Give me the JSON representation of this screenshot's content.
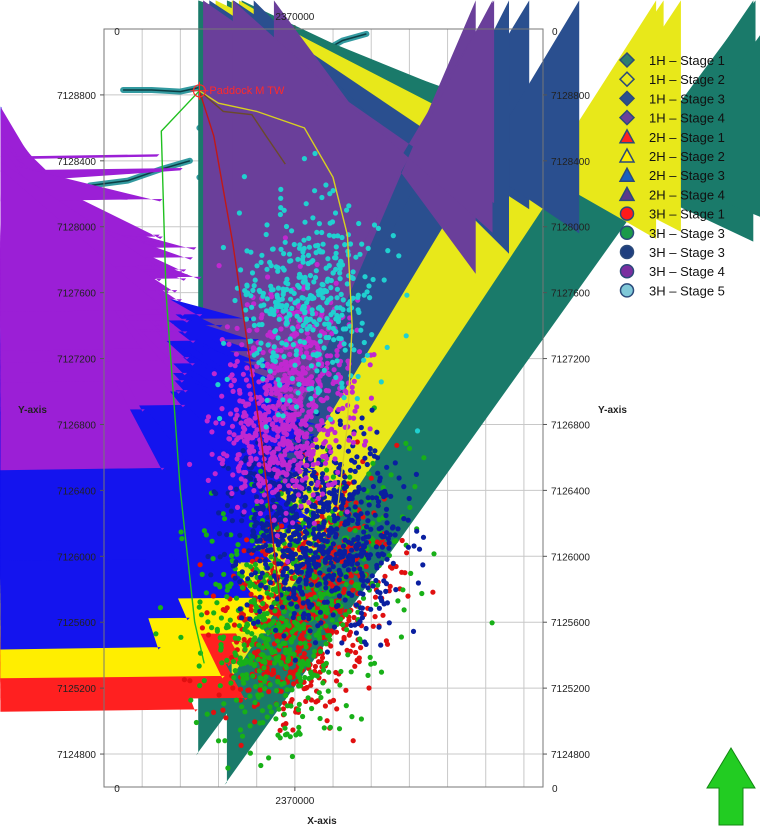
{
  "chart_data": {
    "type": "scatter",
    "title": "",
    "xlabel": "X-axis",
    "ylabel": "Y-axis",
    "x_range": [
      2368000,
      2372600
    ],
    "y_range": [
      7124600,
      7129200
    ],
    "x_ticks": [
      {
        "value": 2370000,
        "label": "2370000"
      }
    ],
    "x_corner_label": "0",
    "y_corner_label": "0",
    "y_ticks": [
      {
        "value": 7128800,
        "label": "7128800"
      },
      {
        "value": 7128400,
        "label": "7128400"
      },
      {
        "value": 7128000,
        "label": "7128000"
      },
      {
        "value": 7127600,
        "label": "7127600"
      },
      {
        "value": 7127200,
        "label": "7127200"
      },
      {
        "value": 7126800,
        "label": "7126800"
      },
      {
        "value": 7126400,
        "label": "7126400"
      },
      {
        "value": 7126000,
        "label": "7126000"
      },
      {
        "value": 7125600,
        "label": "7125600"
      },
      {
        "value": 7125200,
        "label": "7125200"
      },
      {
        "value": 7124800,
        "label": "7124800"
      }
    ],
    "grid": true,
    "legend_position": "right",
    "well_label": "Paddock M TW",
    "wellhead": [
      2369000,
      7128825
    ],
    "series": [
      {
        "name": "1H – Stage 1",
        "marker": "diamond",
        "color": "#1a7a6a",
        "legend_color": "#2e7d6e",
        "points": 3,
        "clusters": [
          [
            2369200,
            7125000,
            260,
            200,
            1
          ]
        ]
      },
      {
        "name": "1H – Stage 2",
        "marker": "diamond",
        "color": "#e8e81a",
        "legend_color": "#e8e81a",
        "points": 3,
        "clusters": [
          [
            2369100,
            7125500,
            260,
            200,
            1
          ]
        ]
      },
      {
        "name": "1H – Stage 3",
        "marker": "diamond",
        "color": "#2a4f8f",
        "legend_color": "#2a4f8f",
        "points": 3,
        "clusters": [
          [
            2369300,
            7126000,
            260,
            200,
            1
          ]
        ]
      },
      {
        "name": "1H – Stage 4",
        "marker": "diamond",
        "color": "#6a3f9a",
        "legend_color": "#6a3f9a",
        "points": 3,
        "clusters": [
          [
            2369500,
            7126500,
            260,
            200,
            1
          ]
        ]
      },
      {
        "name": "2H – Stage 1",
        "marker": "triangle",
        "color": "#ff2020",
        "legend_color": "#ff2020",
        "points": 110,
        "clusters": [
          [
            2368900,
            7125600,
            330,
            260,
            1
          ]
        ]
      },
      {
        "name": "2H – Stage 2",
        "marker": "triangle",
        "color": "#ffee00",
        "legend_color": "#ffee00",
        "points": 160,
        "clusters": [
          [
            2368950,
            7126000,
            380,
            280,
            1
          ]
        ]
      },
      {
        "name": "2H – Stage 3",
        "marker": "triangle",
        "color": "#1414ee",
        "legend_color": "#1a5fbf",
        "points": 1300,
        "clusters": [
          [
            2368700,
            7126420,
            520,
            300,
            0.6
          ],
          [
            2369350,
            7126700,
            320,
            220,
            0.4
          ]
        ]
      },
      {
        "name": "2H – Stage 4",
        "marker": "triangle",
        "color": "#9b1fd6",
        "legend_color": "#5a3a8a",
        "points": 170,
        "clusters": [
          [
            2368400,
            7127650,
            180,
            150,
            0.7
          ],
          [
            2368700,
            7127400,
            200,
            400,
            0.3
          ]
        ]
      },
      {
        "name": "3H – Stage 1",
        "marker": "circle",
        "color": "#e01010",
        "legend_color": "#ff1a1a",
        "points": 650,
        "clusters": [
          [
            2369900,
            7125550,
            330,
            300,
            0.65
          ],
          [
            2370500,
            7125900,
            300,
            280,
            0.35
          ]
        ]
      },
      {
        "name": "3H – Stage 3",
        "marker": "circle",
        "color": "#18b018",
        "legend_color": "#1a9a4a",
        "points": 650,
        "clusters": [
          [
            2369800,
            7125500,
            380,
            320,
            0.6
          ],
          [
            2370200,
            7126000,
            500,
            300,
            0.4
          ]
        ]
      },
      {
        "name": "3H – Stage 3",
        "marker": "circle",
        "color": "#0a1fa0",
        "legend_color": "#1f3f7f",
        "points": 850,
        "clusters": [
          [
            2370350,
            7126150,
            420,
            280,
            0.7
          ],
          [
            2369900,
            7126300,
            300,
            250,
            0.3
          ]
        ]
      },
      {
        "name": "3H – Stage 4",
        "marker": "circle",
        "color": "#c028d0",
        "legend_color": "#7a2fa0",
        "points": 750,
        "clusters": [
          [
            2369800,
            7126750,
            320,
            230,
            0.6
          ],
          [
            2370100,
            7127150,
            300,
            250,
            0.4
          ]
        ]
      },
      {
        "name": "3H – Stage 5",
        "marker": "circle",
        "color": "#20d0d0",
        "legend_color": "#7fc8d8",
        "points": 400,
        "clusters": [
          [
            2370150,
            7127550,
            360,
            300,
            1
          ]
        ]
      }
    ],
    "wellpaths": [
      {
        "color": "#20c020",
        "points": [
          [
            2369000,
            7128825
          ],
          [
            2368600,
            7128580
          ],
          [
            2368650,
            7127600
          ],
          [
            2368800,
            7126400
          ],
          [
            2368950,
            7125600
          ],
          [
            2369050,
            7125350
          ]
        ]
      },
      {
        "color": "#c01818",
        "points": [
          [
            2369000,
            7128825
          ],
          [
            2369150,
            7128550
          ],
          [
            2369350,
            7127900
          ],
          [
            2369500,
            7127300
          ],
          [
            2369650,
            7126700
          ],
          [
            2369750,
            7126200
          ],
          [
            2369850,
            7125700
          ]
        ]
      },
      {
        "color": "#d8d020",
        "points": [
          [
            2369000,
            7128825
          ],
          [
            2369200,
            7128750
          ],
          [
            2369600,
            7128700
          ],
          [
            2370100,
            7128600
          ],
          [
            2370400,
            7128300
          ],
          [
            2370550,
            7127950
          ],
          [
            2370600,
            7127400
          ],
          [
            2370550,
            7126800
          ],
          [
            2370450,
            7126300
          ]
        ]
      },
      {
        "color": "#6a4a2a",
        "points": [
          [
            2369050,
            7128800
          ],
          [
            2369250,
            7128700
          ],
          [
            2369550,
            7128680
          ],
          [
            2369700,
            7128550
          ],
          [
            2369900,
            7128380
          ]
        ]
      }
    ],
    "horizons": [
      [
        [
          2367850,
          7128250
        ],
        [
          2368250,
          7128280
        ],
        [
          2368600,
          7128350
        ],
        [
          2368900,
          7128400
        ]
      ],
      [
        [
          2368200,
          7128830
        ],
        [
          2368500,
          7128830
        ],
        [
          2368800,
          7128820
        ],
        [
          2369200,
          7128870
        ],
        [
          2369600,
          7128880
        ]
      ],
      [
        [
          2369000,
          7128300
        ],
        [
          2369500,
          7128400
        ],
        [
          2369900,
          7128580
        ],
        [
          2370350,
          7128550
        ],
        [
          2370650,
          7128540
        ]
      ],
      [
        [
          2369900,
          7128800
        ],
        [
          2370100,
          7129000
        ],
        [
          2370500,
          7129130
        ],
        [
          2370750,
          7129170
        ]
      ],
      [
        [
          2369000,
          7128600
        ],
        [
          2369300,
          7128750
        ],
        [
          2369600,
          7128980
        ],
        [
          2370000,
          7129080
        ]
      ],
      [
        [
          2368600,
          7127180
        ],
        [
          2369100,
          7127450
        ],
        [
          2369500,
          7127800
        ],
        [
          2369800,
          7128000
        ],
        [
          2370300,
          7128100
        ],
        [
          2370750,
          7128150
        ]
      ]
    ]
  },
  "arrow": {
    "color": "#22cc22",
    "stroke": "#118811"
  }
}
